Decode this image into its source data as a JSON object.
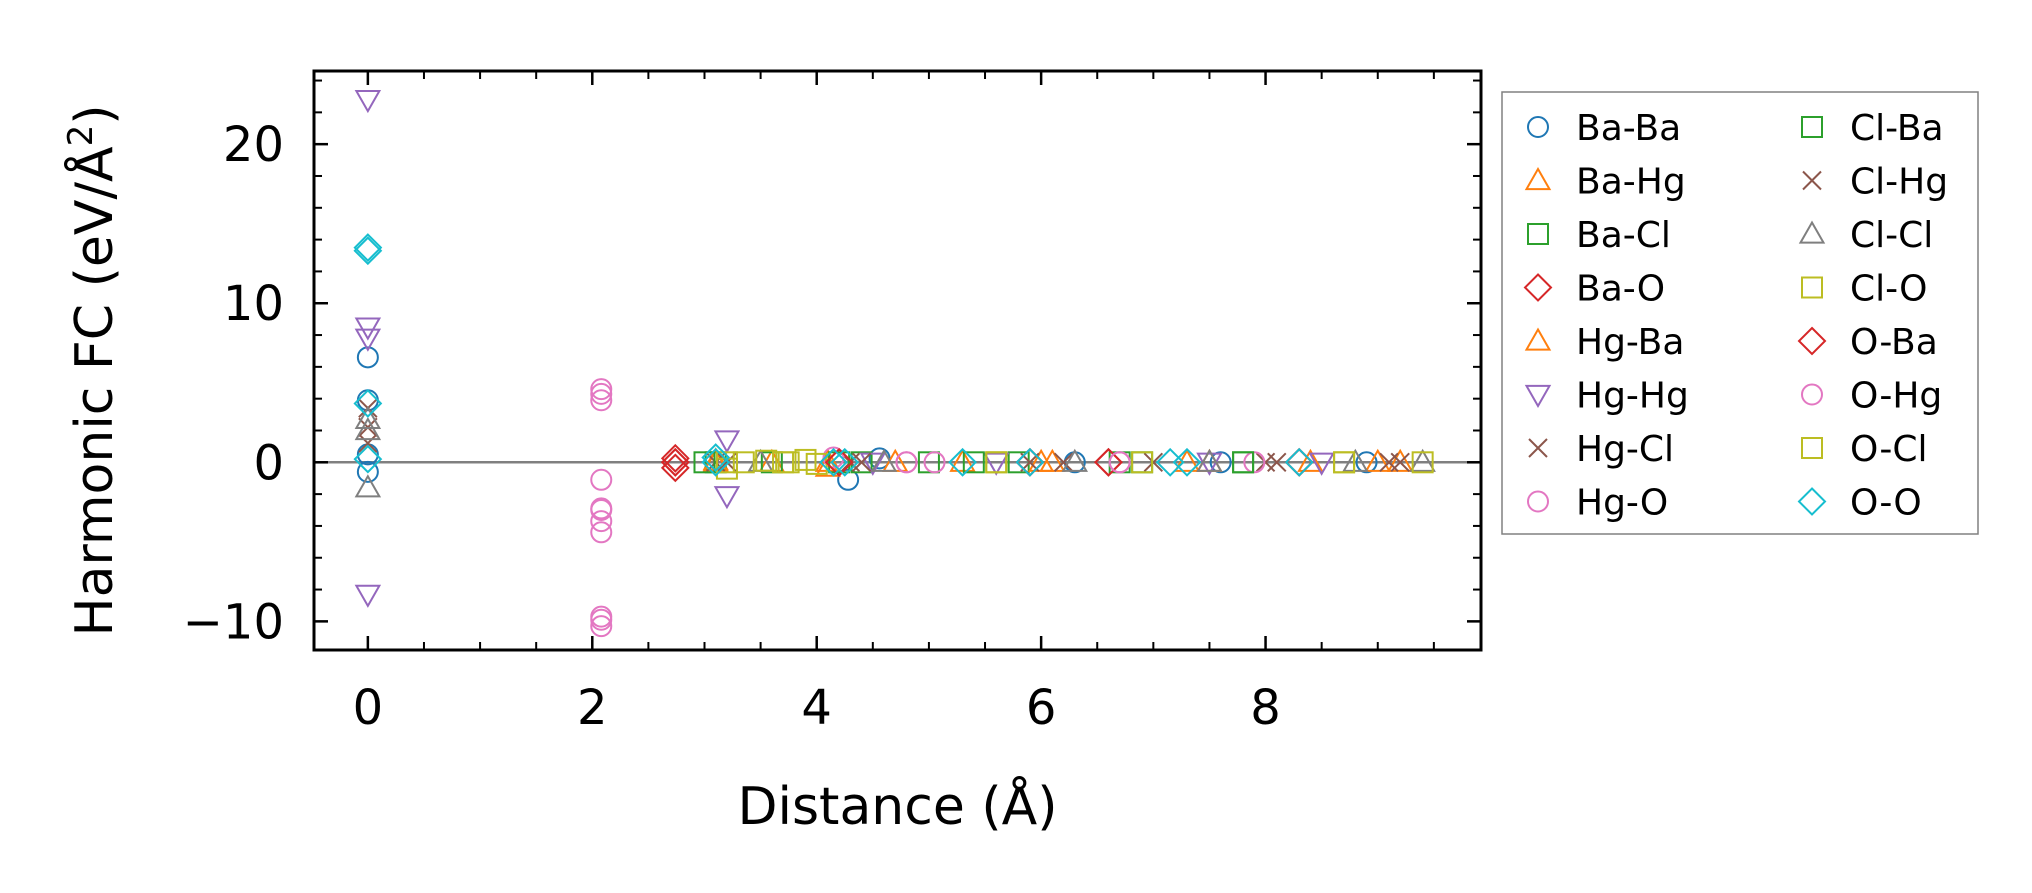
{
  "chart_data": {
    "type": "scatter",
    "xlabel": "Distance (Å)",
    "ylabel_main": "Harmonic FC (eV/Å",
    "ylabel_sup": "2",
    "ylabel_close": ")",
    "xlim": [
      -0.48,
      9.92
    ],
    "ylim": [
      -11.8,
      24.6
    ],
    "xticks": [
      0,
      2,
      4,
      6,
      8
    ],
    "yticks": [
      -10,
      0,
      10,
      20
    ],
    "xtick_labels": [
      "0",
      "2",
      "4",
      "6",
      "8"
    ],
    "ytick_labels": [
      "−10",
      "0",
      "10",
      "20"
    ],
    "zero_line": true,
    "grid": false,
    "legend_position": "outside-right",
    "series": [
      {
        "name": "Ba-Ba",
        "marker": "circle",
        "color": "#1f77b4",
        "points": [
          [
            0,
            6.6
          ],
          [
            0,
            3.9
          ],
          [
            0,
            0.5
          ],
          [
            0,
            -0.6
          ],
          [
            4.28,
            -1.1
          ],
          [
            4.56,
            0.25
          ],
          [
            6.3,
            0.0
          ],
          [
            7.6,
            0.0
          ],
          [
            8.9,
            0.0
          ]
        ]
      },
      {
        "name": "Ba-Hg",
        "marker": "triangle-up",
        "color": "#ff7f0e",
        "points": [
          [
            3.1,
            0.1
          ],
          [
            3.6,
            0.0
          ],
          [
            4.1,
            -0.3
          ],
          [
            5.3,
            0.0
          ],
          [
            6.1,
            0.0
          ],
          [
            7.3,
            0.0
          ],
          [
            8.4,
            0.0
          ],
          [
            9.2,
            0.0
          ]
        ]
      },
      {
        "name": "Ba-Cl",
        "marker": "square",
        "color": "#2ca02c",
        "points": [
          [
            3.1,
            0.0
          ],
          [
            3.6,
            0.0
          ],
          [
            4.4,
            0.0
          ],
          [
            5.0,
            0.0
          ],
          [
            5.8,
            0.0
          ],
          [
            6.7,
            0.0
          ],
          [
            7.8,
            0.0
          ]
        ]
      },
      {
        "name": "Ba-O",
        "marker": "diamond",
        "color": "#d62728",
        "points": [
          [
            2.74,
            0.25
          ],
          [
            2.74,
            -0.35
          ],
          [
            2.74,
            0.0
          ],
          [
            4.2,
            0.0
          ],
          [
            5.9,
            0.0
          ],
          [
            6.6,
            0.0
          ],
          [
            8.3,
            0.0
          ]
        ]
      },
      {
        "name": "Hg-Ba",
        "marker": "triangle-up",
        "color": "#ff7f0e",
        "points": [
          [
            3.1,
            0.0
          ],
          [
            4.1,
            0.0
          ],
          [
            4.7,
            0.0
          ],
          [
            6.0,
            0.0
          ],
          [
            7.5,
            0.0
          ],
          [
            9.0,
            0.0
          ]
        ]
      },
      {
        "name": "Hg-Hg",
        "marker": "triangle-down",
        "color": "#9467bd",
        "points": [
          [
            0,
            22.8
          ],
          [
            0,
            8.5
          ],
          [
            0,
            7.8
          ],
          [
            0,
            -8.3
          ],
          [
            3.2,
            1.4
          ],
          [
            3.2,
            -2.1
          ],
          [
            4.5,
            0.0
          ],
          [
            5.6,
            0.0
          ],
          [
            7.5,
            0.0
          ],
          [
            8.5,
            0.0
          ]
        ]
      },
      {
        "name": "Hg-Cl",
        "marker": "x",
        "color": "#8c564b",
        "points": [
          [
            0,
            3.4
          ],
          [
            0,
            2.2
          ],
          [
            3.1,
            0.0
          ],
          [
            4.3,
            0.0
          ],
          [
            5.9,
            0.0
          ],
          [
            7.0,
            0.0
          ],
          [
            8.0,
            0.0
          ],
          [
            9.1,
            0.0
          ]
        ]
      },
      {
        "name": "Hg-O",
        "marker": "circle",
        "color": "#e377c2",
        "points": [
          [
            2.08,
            4.6
          ],
          [
            2.08,
            3.9
          ],
          [
            2.08,
            -1.1
          ],
          [
            2.08,
            -2.9
          ],
          [
            2.08,
            -3.7
          ],
          [
            2.08,
            -4.4
          ],
          [
            2.08,
            -9.7
          ],
          [
            2.08,
            -10.3
          ],
          [
            4.15,
            0.3
          ],
          [
            4.8,
            0.0
          ],
          [
            5.05,
            0.0
          ],
          [
            6.7,
            0.0
          ],
          [
            7.9,
            0.0
          ]
        ]
      },
      {
        "name": "Cl-Ba",
        "marker": "square",
        "color": "#2ca02c",
        "points": [
          [
            3.0,
            0.0
          ],
          [
            4.2,
            0.0
          ],
          [
            5.4,
            0.0
          ],
          [
            6.9,
            0.0
          ],
          [
            7.8,
            0.0
          ]
        ]
      },
      {
        "name": "Cl-Hg",
        "marker": "x",
        "color": "#8c564b",
        "points": [
          [
            0,
            1.2
          ],
          [
            3.2,
            0.0
          ],
          [
            4.4,
            0.0
          ],
          [
            6.2,
            0.0
          ],
          [
            8.1,
            0.0
          ],
          [
            9.2,
            0.0
          ]
        ]
      },
      {
        "name": "Cl-Cl",
        "marker": "triangle-up",
        "color": "#7f7f7f",
        "points": [
          [
            0,
            2.7
          ],
          [
            0,
            2.0
          ],
          [
            0,
            -1.6
          ],
          [
            3.5,
            0.0
          ],
          [
            4.6,
            0.0
          ],
          [
            6.3,
            0.0
          ],
          [
            7.5,
            0.0
          ],
          [
            8.8,
            0.0
          ],
          [
            9.4,
            0.0
          ]
        ]
      },
      {
        "name": "Cl-O",
        "marker": "square",
        "color": "#bcbd22",
        "points": [
          [
            3.2,
            -0.4
          ],
          [
            3.35,
            0.0
          ],
          [
            3.55,
            0.1
          ],
          [
            3.75,
            0.0
          ],
          [
            3.9,
            0.15
          ],
          [
            4.0,
            -0.1
          ],
          [
            5.6,
            0.0
          ],
          [
            6.9,
            0.0
          ],
          [
            8.7,
            0.0
          ],
          [
            9.4,
            0.0
          ]
        ]
      },
      {
        "name": "O-Ba",
        "marker": "diamond",
        "color": "#d62728",
        "points": [
          [
            2.74,
            0.0
          ],
          [
            4.2,
            0.0
          ],
          [
            5.9,
            0.0
          ],
          [
            6.6,
            0.0
          ],
          [
            8.3,
            0.0
          ]
        ]
      },
      {
        "name": "O-Hg",
        "marker": "circle",
        "color": "#e377c2",
        "points": [
          [
            2.08,
            4.3
          ],
          [
            2.08,
            -3.0
          ],
          [
            2.08,
            -9.9
          ],
          [
            4.8,
            0.0
          ],
          [
            6.7,
            0.0
          ]
        ]
      },
      {
        "name": "O-Cl",
        "marker": "square",
        "color": "#bcbd22",
        "points": [
          [
            3.2,
            0.0
          ],
          [
            3.7,
            0.0
          ],
          [
            5.6,
            0.0
          ],
          [
            8.7,
            0.0
          ]
        ]
      },
      {
        "name": "O-O",
        "marker": "diamond",
        "color": "#17becf",
        "points": [
          [
            0,
            13.5
          ],
          [
            0,
            13.3
          ],
          [
            0,
            3.7
          ],
          [
            0,
            0.2
          ],
          [
            3.1,
            0.0
          ],
          [
            3.1,
            0.3
          ],
          [
            4.15,
            0.0
          ],
          [
            4.25,
            0.0
          ],
          [
            5.3,
            0.0
          ],
          [
            5.9,
            0.0
          ],
          [
            7.15,
            0.0
          ],
          [
            7.3,
            0.0
          ],
          [
            8.3,
            0.0
          ]
        ]
      }
    ]
  }
}
